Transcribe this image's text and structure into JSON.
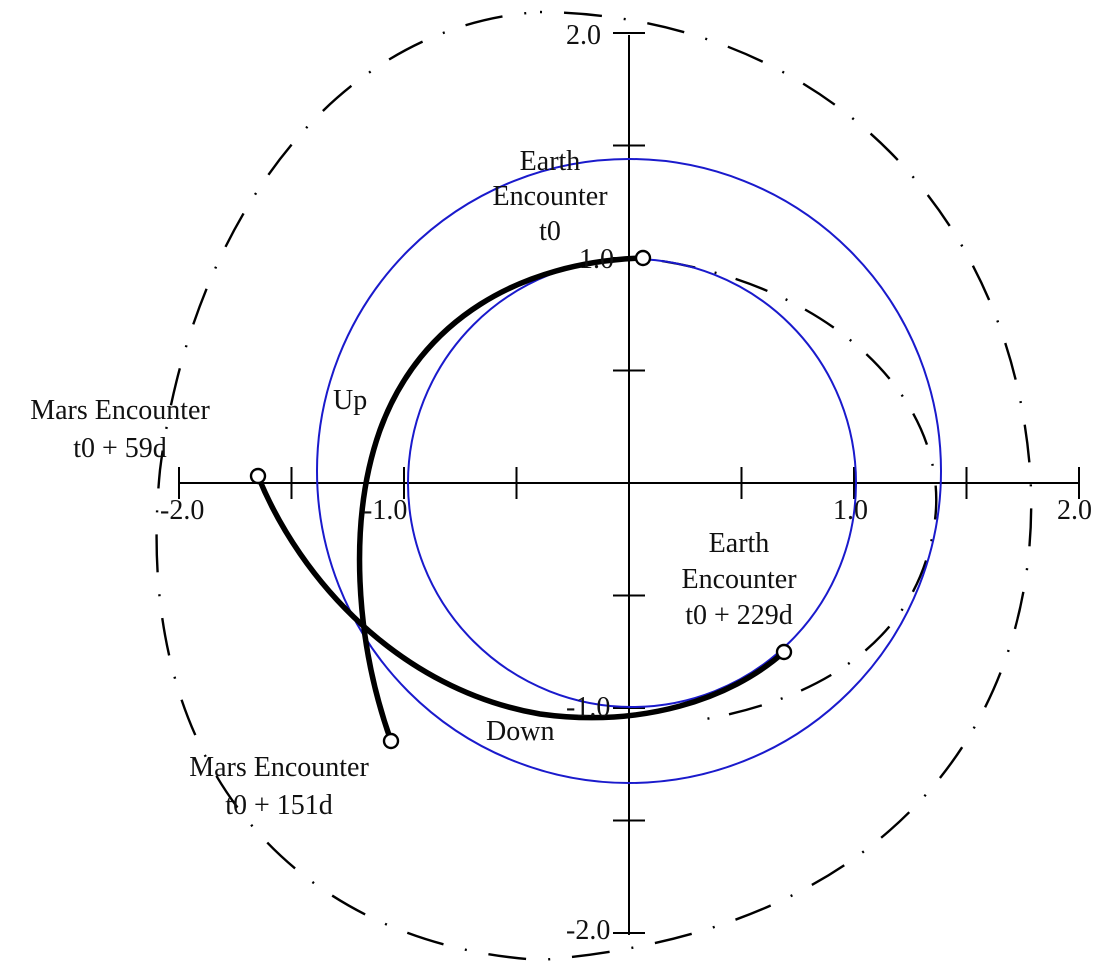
{
  "diagram": {
    "axes": {
      "x_ticks": [
        {
          "value": -2.0,
          "label": "-2.0"
        },
        {
          "value": -1.0,
          "label": "-1.0"
        },
        {
          "value": 1.0,
          "label": "1.0"
        },
        {
          "value": 2.0,
          "label": "2.0"
        }
      ],
      "y_ticks": [
        {
          "value": 2.0,
          "label": "2.0"
        },
        {
          "value": 1.0,
          "label": "1.0"
        },
        {
          "value": -1.0,
          "label": "-1.0"
        },
        {
          "value": -2.0,
          "label": "-2.0"
        }
      ]
    },
    "orbit_radii_au": {
      "earth": 1.0,
      "mars": 1.38
    },
    "encounters": [
      {
        "name": "Earth Encounter",
        "time": "t0",
        "x": 0.05,
        "y": 1.0
      },
      {
        "name": "Mars Encounter",
        "time": "t0 + 59d",
        "x": -1.65,
        "y": 0.03
      },
      {
        "name": "Mars Encounter",
        "time": "t0 + 151d",
        "x": -1.07,
        "y": -1.14
      },
      {
        "name": "Earth Encounter",
        "time": "t0 + 229d",
        "x": 0.69,
        "y": -0.76
      }
    ],
    "leg_labels": {
      "up": "Up",
      "down": "Down"
    },
    "colors": {
      "planet_orbits": "#1a1acc",
      "trajectory": "#000000",
      "axes": "#000000"
    }
  }
}
